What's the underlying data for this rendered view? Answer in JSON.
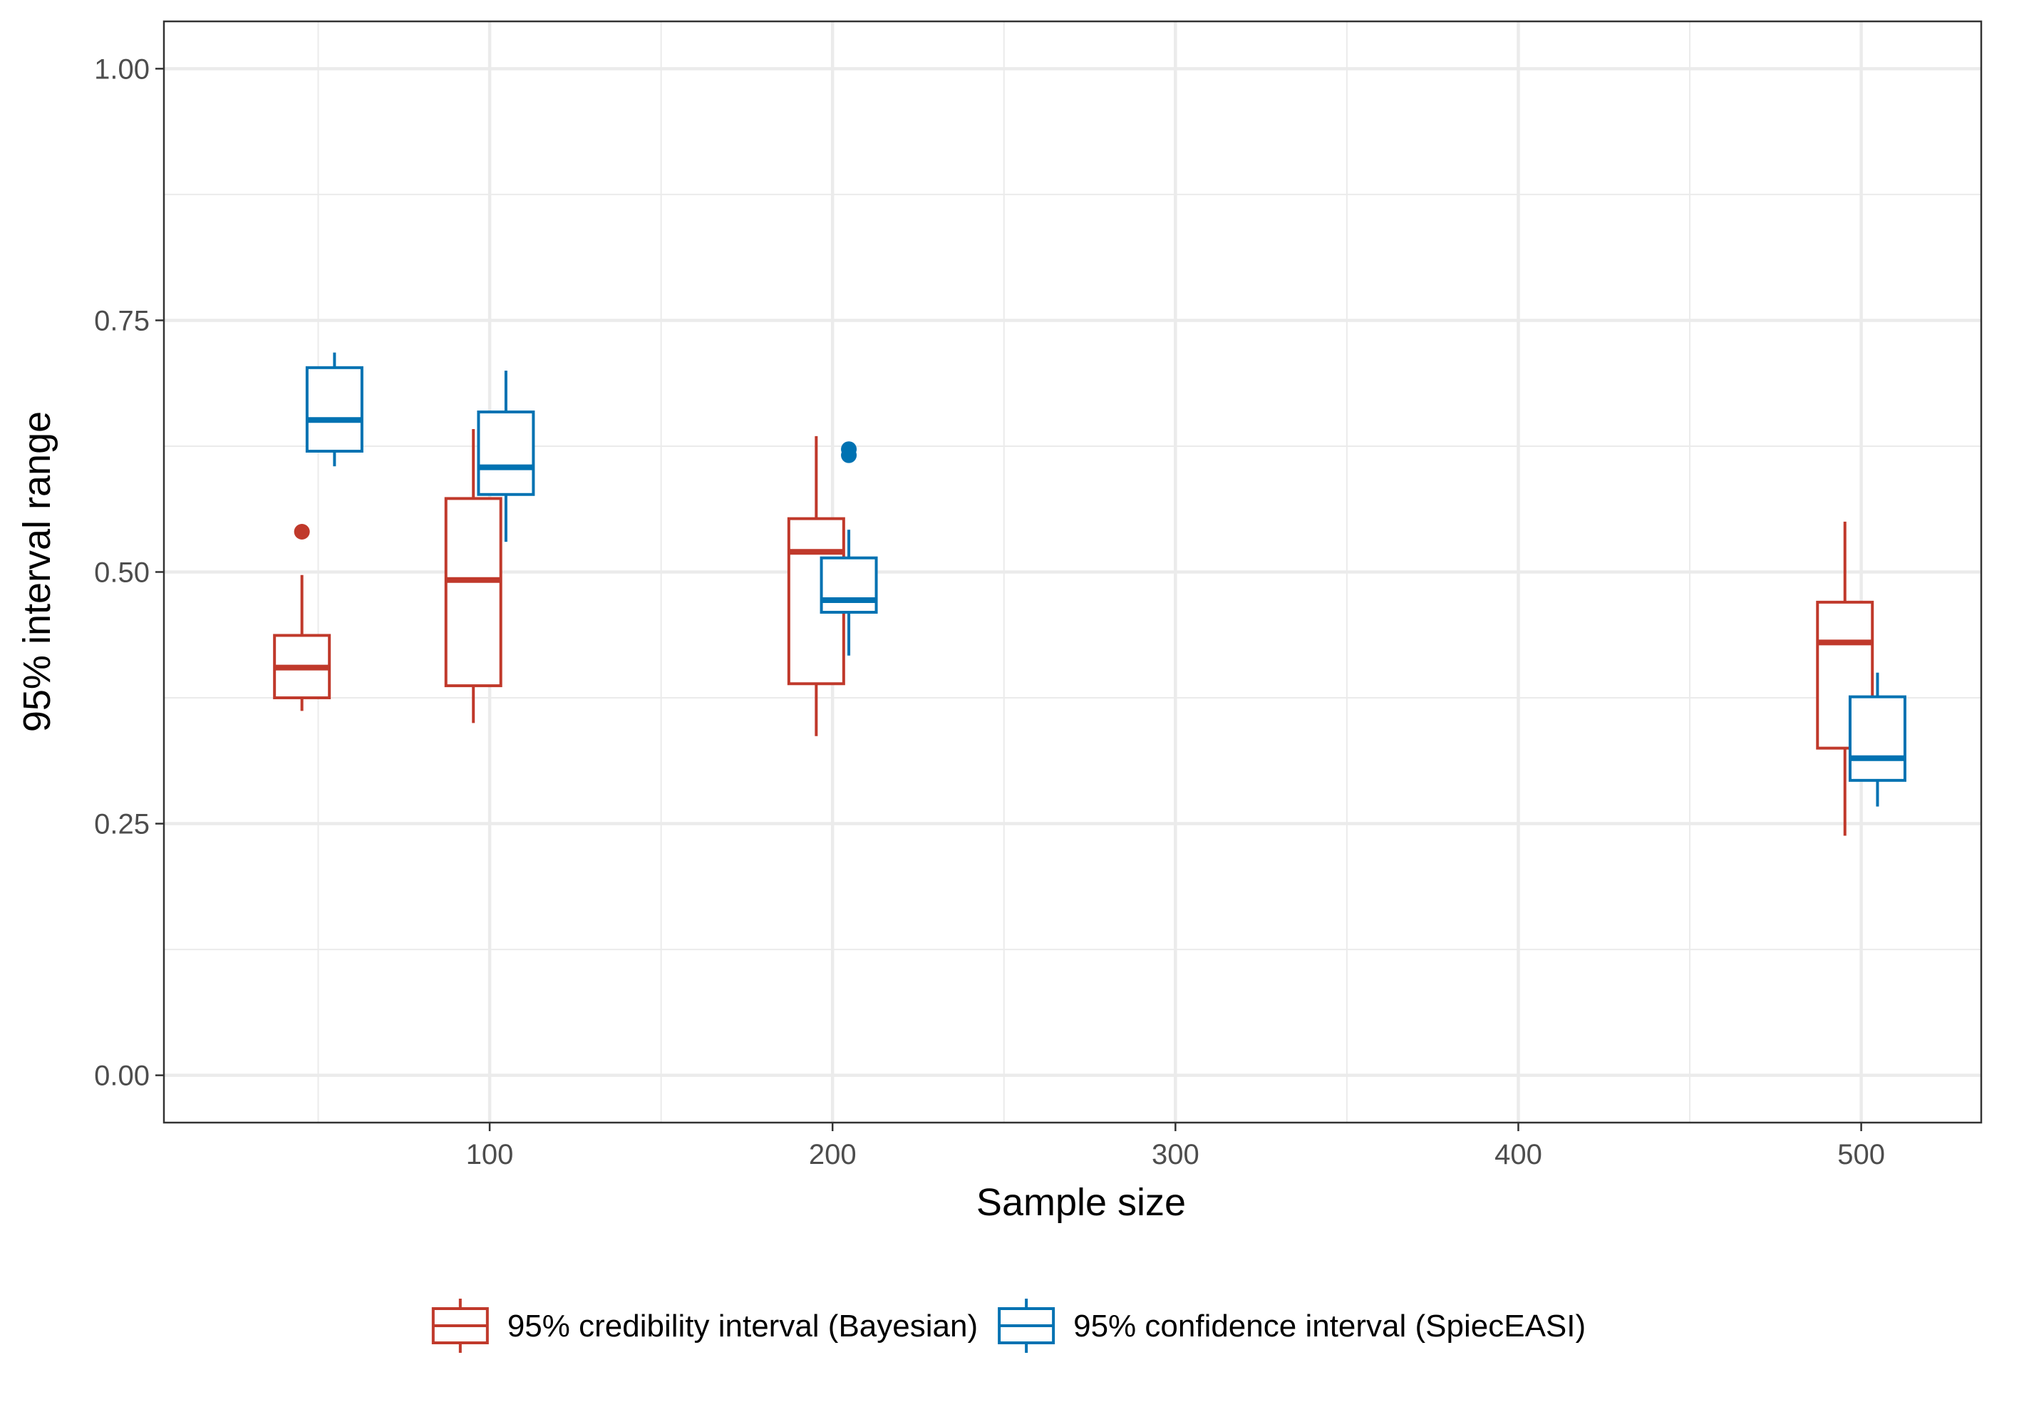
{
  "chart_data": {
    "type": "boxplot",
    "title": "",
    "xlabel": "Sample size",
    "ylabel": "95% interval range",
    "xlim": [
      5,
      535
    ],
    "ylim": [
      -0.047,
      1.047
    ],
    "x_ticks": [
      100,
      200,
      300,
      400,
      500
    ],
    "x_tick_labels": [
      "100",
      "200",
      "300",
      "400",
      "500"
    ],
    "y_ticks": [
      0,
      0.25,
      0.5,
      0.75,
      1.0
    ],
    "y_tick_labels": [
      "0.00",
      "0.25",
      "0.50",
      "0.75",
      "1.00"
    ],
    "grid": true,
    "legend_position": "bottom",
    "series": [
      {
        "name": "95% credibility interval (Bayesian)",
        "color": "#c0392b",
        "boxes": [
          {
            "x": 50,
            "whisker_low": 0.362,
            "q1": 0.375,
            "median": 0.405,
            "q3": 0.437,
            "whisker_high": 0.497,
            "outliers": [
              0.54
            ]
          },
          {
            "x": 100,
            "whisker_low": 0.35,
            "q1": 0.387,
            "median": 0.492,
            "q3": 0.573,
            "whisker_high": 0.642,
            "outliers": []
          },
          {
            "x": 200,
            "whisker_low": 0.337,
            "q1": 0.389,
            "median": 0.52,
            "q3": 0.553,
            "whisker_high": 0.635,
            "outliers": []
          },
          {
            "x": 500,
            "whisker_low": 0.238,
            "q1": 0.325,
            "median": 0.43,
            "q3": 0.47,
            "whisker_high": 0.55,
            "outliers": []
          }
        ]
      },
      {
        "name": "95% confidence interval (SpiecEASI)",
        "color": "#0072b2",
        "boxes": [
          {
            "x": 50,
            "whisker_low": 0.605,
            "q1": 0.62,
            "median": 0.651,
            "q3": 0.703,
            "whisker_high": 0.718,
            "outliers": []
          },
          {
            "x": 100,
            "whisker_low": 0.53,
            "q1": 0.577,
            "median": 0.604,
            "q3": 0.659,
            "whisker_high": 0.7,
            "outliers": []
          },
          {
            "x": 200,
            "whisker_low": 0.417,
            "q1": 0.46,
            "median": 0.472,
            "q3": 0.514,
            "whisker_high": 0.542,
            "outliers": [
              0.616,
              0.622
            ]
          },
          {
            "x": 500,
            "whisker_low": 0.267,
            "q1": 0.293,
            "median": 0.315,
            "q3": 0.376,
            "whisker_high": 0.4,
            "outliers": []
          }
        ]
      }
    ]
  }
}
